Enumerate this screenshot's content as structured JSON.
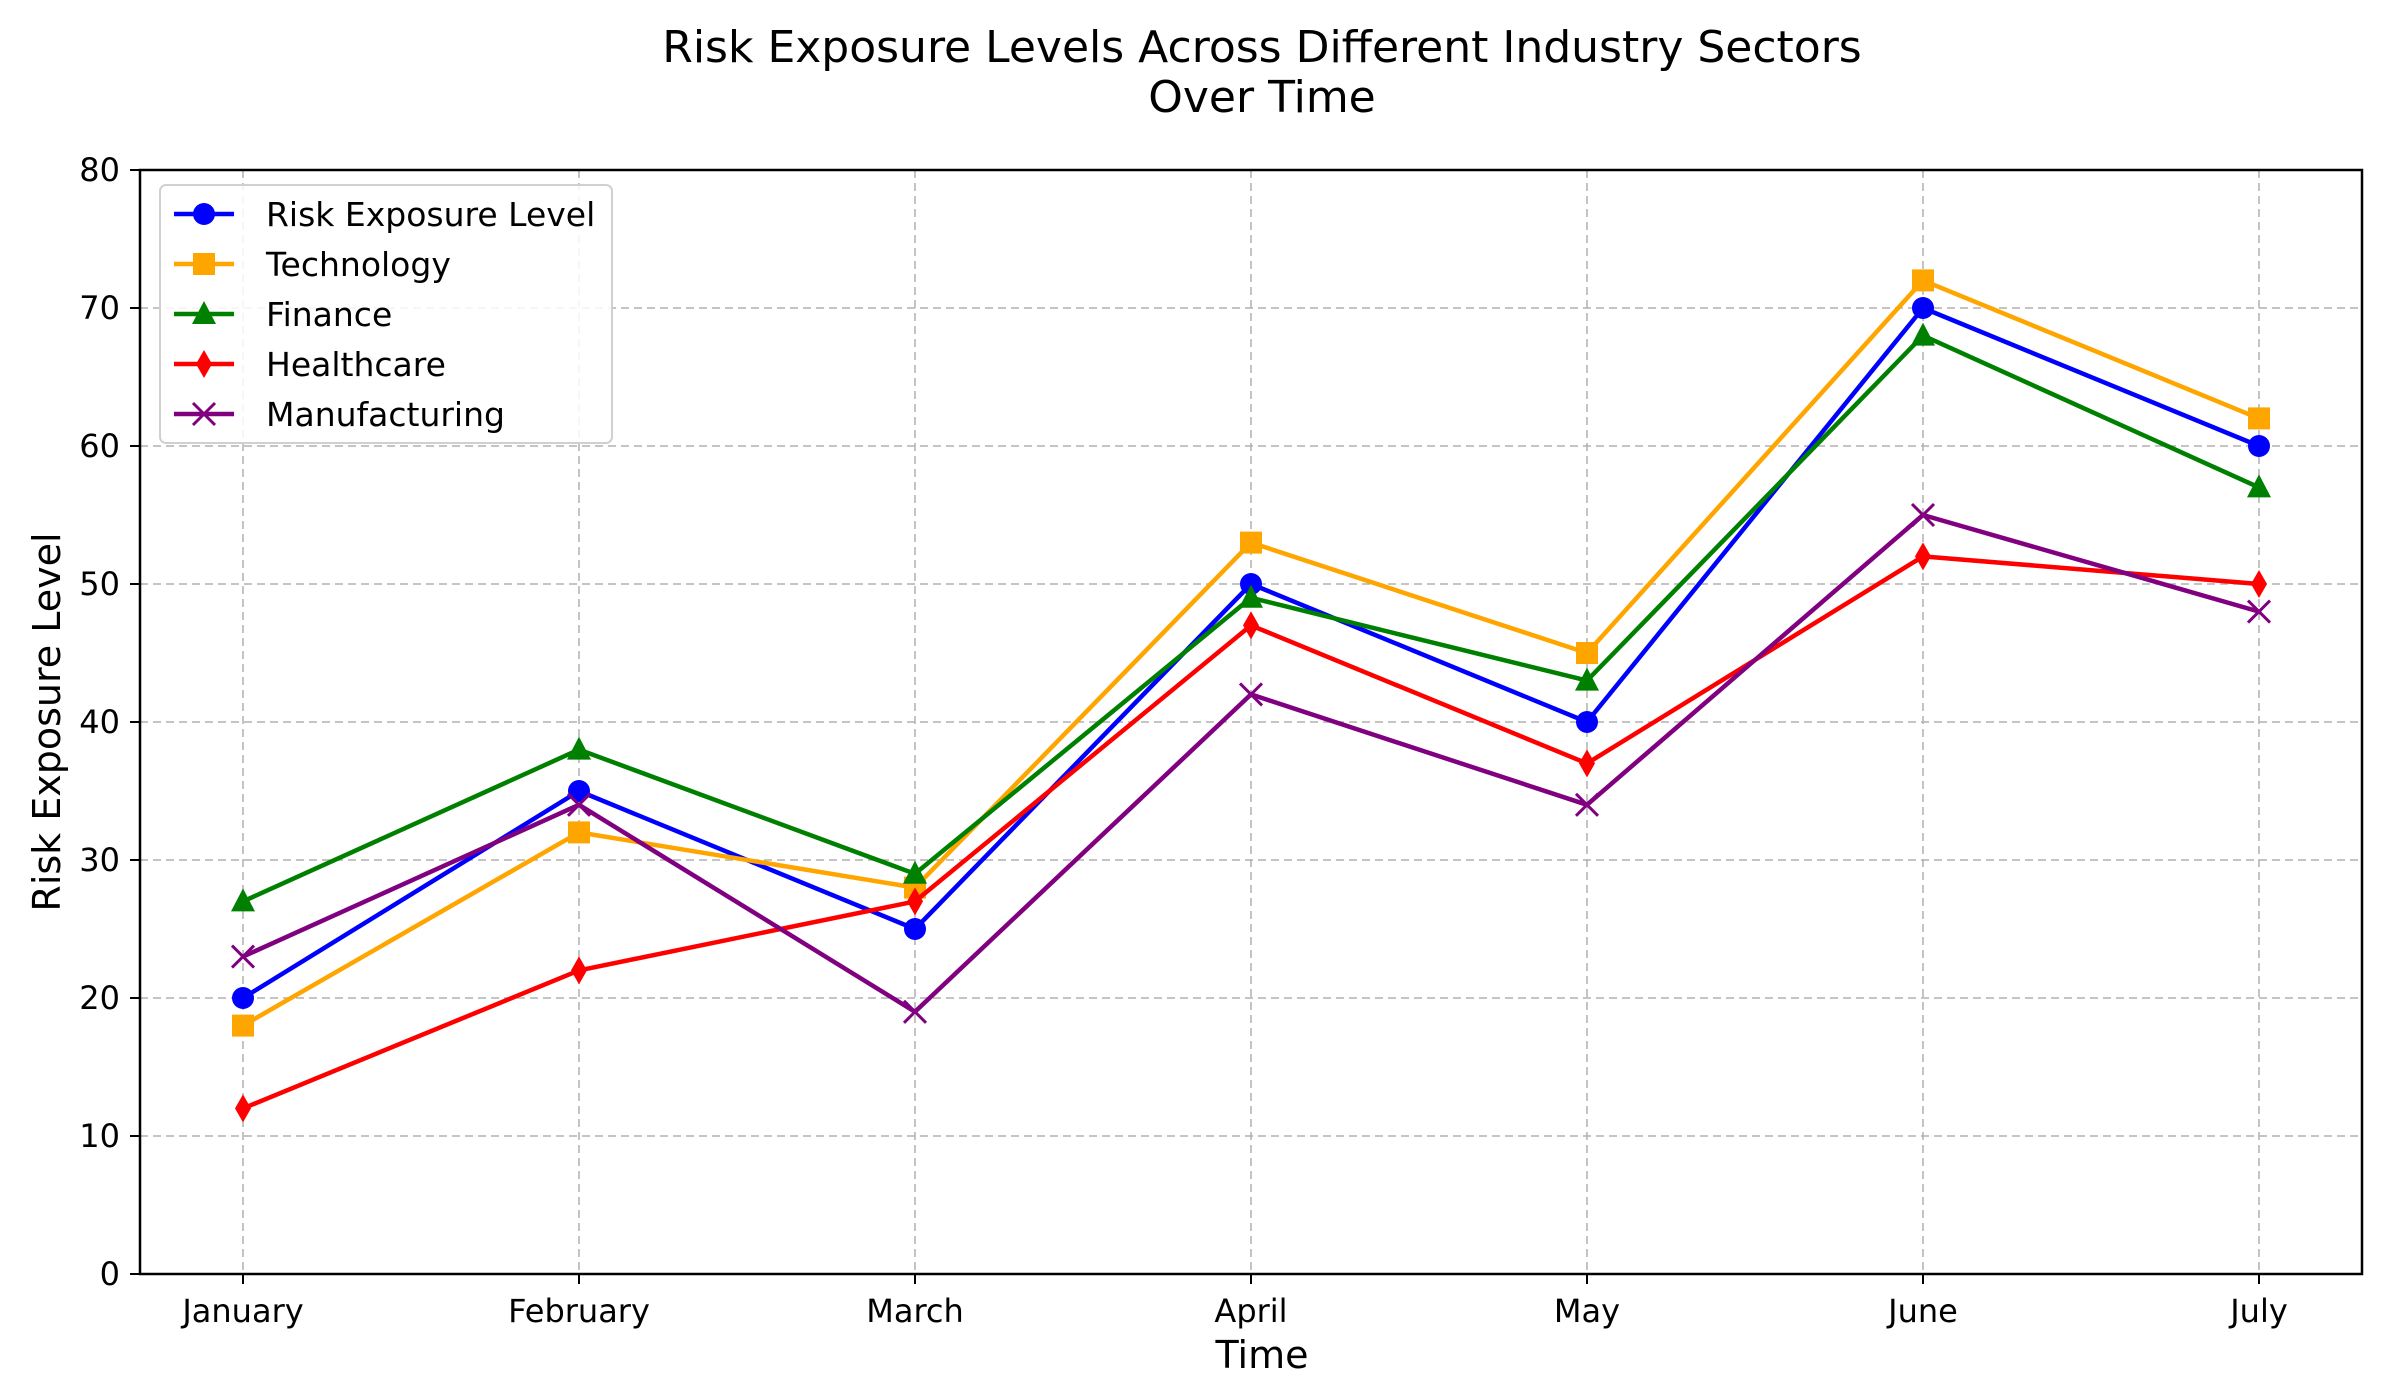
{
  "chart_data": {
    "type": "line",
    "title_lines": [
      "Risk Exposure Levels Across Different Industry Sectors",
      "Over Time"
    ],
    "xlabel": "Time",
    "ylabel": "Risk Exposure Level",
    "categories": [
      "January",
      "February",
      "March",
      "April",
      "May",
      "June",
      "July"
    ],
    "ylim": [
      0,
      80
    ],
    "yticks": [
      0,
      10,
      20,
      30,
      40,
      50,
      60,
      70,
      80
    ],
    "grid": true,
    "legend_position": "top-left",
    "series": [
      {
        "name": "Risk Exposure Level",
        "color": "#0000ff",
        "marker": "circle",
        "values": [
          20,
          35,
          25,
          50,
          40,
          70,
          60
        ]
      },
      {
        "name": "Technology",
        "color": "#ffa500",
        "marker": "square",
        "values": [
          18,
          32,
          28,
          53,
          45,
          72,
          62
        ]
      },
      {
        "name": "Finance",
        "color": "#008000",
        "marker": "triangle",
        "values": [
          27,
          38,
          29,
          49,
          43,
          68,
          57
        ]
      },
      {
        "name": "Healthcare",
        "color": "#ff0000",
        "marker": "diamond",
        "values": [
          12,
          22,
          27,
          47,
          37,
          52,
          50
        ]
      },
      {
        "name": "Manufacturing",
        "color": "#800080",
        "marker": "x",
        "values": [
          23,
          34,
          19,
          42,
          34,
          55,
          48
        ]
      }
    ]
  }
}
